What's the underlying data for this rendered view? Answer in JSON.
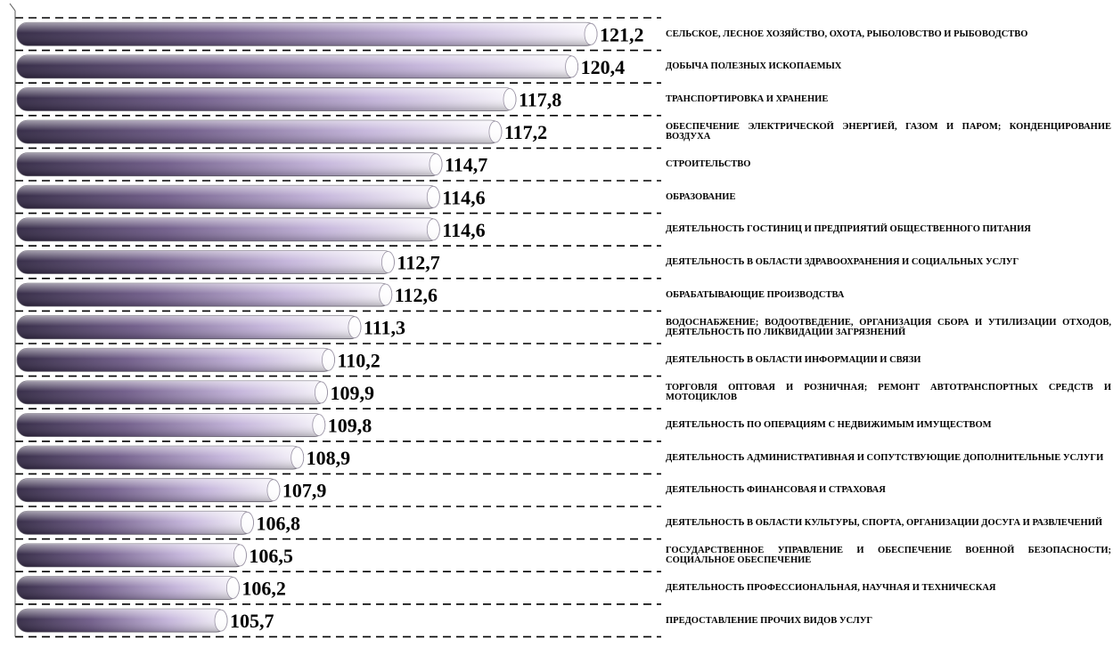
{
  "chart_data": {
    "type": "bar",
    "orientation": "horizontal",
    "title": "",
    "xlabel": "",
    "ylabel": "",
    "xlim": [
      100,
      121.2
    ],
    "grid": true,
    "legend": "none",
    "categories": [
      "СЕЛЬСКОЕ, ЛЕСНОЕ ХОЗЯЙСТВО, ОХОТА, РЫБОЛОВСТВО И РЫБОВОДСТВО",
      "ДОБЫЧА ПОЛЕЗНЫХ ИСКОПАЕМЫХ",
      "ТРАНСПОРТИРОВКА И ХРАНЕНИЕ",
      "ОБЕСПЕЧЕНИЕ ЭЛЕКТРИЧЕСКОЙ ЭНЕРГИЕЙ, ГАЗОМ И ПАРОМ; КОНДЕНЦИРОВАНИЕ ВОЗДУХА",
      "СТРОИТЕЛЬСТВО",
      "ОБРАЗОВАНИЕ",
      "ДЕЯТЕЛЬНОСТЬ ГОСТИНИЦ И ПРЕДПРИЯТИЙ ОБЩЕСТВЕННОГО ПИТАНИЯ",
      "ДЕЯТЕЛЬНОСТЬ В ОБЛАСТИ ЗДРАВООХРАНЕНИЯ И СОЦИАЛЬНЫХ УСЛУГ",
      "ОБРАБАТЫВАЮЩИЕ ПРОИЗВОДСТВА",
      "ВОДОСНАБЖЕНИЕ; ВОДООТВЕДЕНИЕ, ОРГАНИЗАЦИЯ СБОРА И УТИЛИЗАЦИИ ОТХОДОВ, ДЕЯТЕЛЬНОСТЬ ПО ЛИКВИДАЦИИ ЗАГРЯЗНЕНИЙ",
      "ДЕЯТЕЛЬНОСТЬ В ОБЛАСТИ ИНФОРМАЦИИ И СВЯЗИ",
      "ТОРГОВЛЯ ОПТОВАЯ И РОЗНИЧНАЯ; РЕМОНТ АВТОТРАНСПОРТНЫХ СРЕДСТВ И МОТОЦИКЛОВ",
      "ДЕЯТЕЛЬНОСТЬ ПО ОПЕРАЦИЯМ С НЕДВИЖИМЫМ ИМУЩЕСТВОМ",
      "ДЕЯТЕЛЬНОСТЬ АДМИНИСТРАТИВНАЯ И СОПУТСТВУЮЩИЕ ДОПОЛНИТЕЛЬНЫЕ УСЛУГИ",
      "ДЕЯТЕЛЬНОСТЬ ФИНАНСОВАЯ И СТРАХОВАЯ",
      "ДЕЯТЕЛЬНОСТЬ В ОБЛАСТИ КУЛЬТУРЫ, СПОРТА, ОРГАНИЗАЦИИ ДОСУГА И РАЗВЛЕЧЕНИЙ",
      "ГОСУДАРСТВЕННОЕ УПРАВЛЕНИЕ И ОБЕСПЕЧЕНИЕ ВОЕННОЙ БЕЗОПАСНОСТИ; СОЦИАЛЬНОЕ ОБЕСПЕЧЕНИЕ",
      "ДЕЯТЕЛЬНОСТЬ ПРОФЕССИОНАЛЬНАЯ, НАУЧНАЯ И ТЕХНИЧЕСКАЯ",
      "ПРЕДОСТАВЛЕНИЕ ПРОЧИХ ВИДОВ УСЛУГ"
    ],
    "values": [
      121.2,
      120.4,
      117.8,
      117.2,
      114.7,
      114.6,
      114.6,
      112.7,
      112.6,
      111.3,
      110.2,
      109.9,
      109.8,
      108.9,
      107.9,
      106.8,
      106.5,
      106.2,
      105.7
    ],
    "value_labels": [
      "121,2",
      "120,4",
      "117,8",
      "117,2",
      "114,7",
      "114,6",
      "114,6",
      "112,7",
      "112,6",
      "111,3",
      "110,2",
      "109,9",
      "109,8",
      "108,9",
      "107,9",
      "106,8",
      "106,5",
      "106,2",
      "105,7"
    ],
    "colors": {
      "bar_dark": "#3a2c4a",
      "bar_mid": "#b8a6cf",
      "bar_light": "#ffffff",
      "grid": "#000000"
    }
  }
}
